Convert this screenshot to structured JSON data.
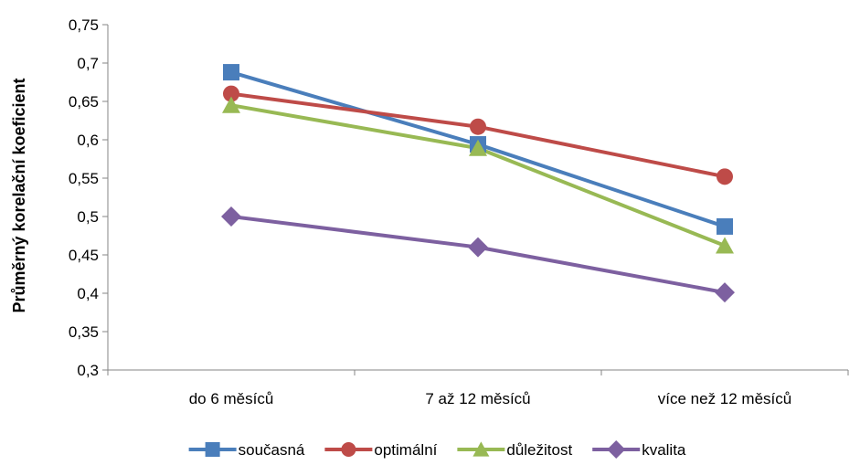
{
  "chart_data": {
    "type": "line",
    "title": "",
    "xlabel": "",
    "ylabel": "Průměrný korelační koeficient",
    "categories": [
      "do 6 měsíců",
      "7 až 12 měsíců",
      "více než 12 měsíců"
    ],
    "ylim": [
      0.3,
      0.75
    ],
    "ytick_step": 0.05,
    "y_tick_labels": [
      "0,3",
      "0,35",
      "0,4",
      "0,45",
      "0,5",
      "0,55",
      "0,6",
      "0,65",
      "0,7",
      "0,75"
    ],
    "grid": false,
    "legend_position": "bottom",
    "series": [
      {
        "name": "současná",
        "values": [
          0.688,
          0.594,
          0.487
        ],
        "color": "#4a7ebb",
        "marker": "square"
      },
      {
        "name": "optimální",
        "values": [
          0.66,
          0.617,
          0.552
        ],
        "color": "#be4b48",
        "marker": "circle"
      },
      {
        "name": "důležitost",
        "values": [
          0.645,
          0.589,
          0.462
        ],
        "color": "#98b954",
        "marker": "triangle"
      },
      {
        "name": "kvalita",
        "values": [
          0.5,
          0.46,
          0.401
        ],
        "color": "#7d60a0",
        "marker": "diamond"
      }
    ]
  }
}
